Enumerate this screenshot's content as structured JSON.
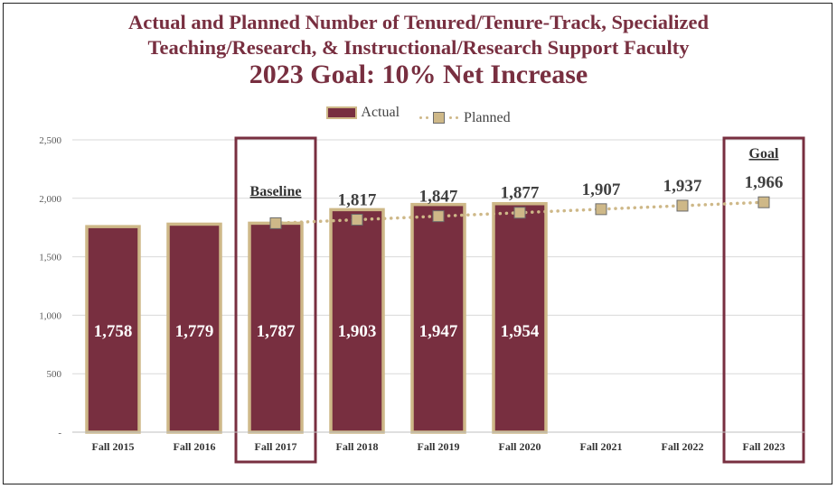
{
  "title_lines": [
    "Actual and Planned Number of Tenured/Tenure-Track, Specialized",
    "Teaching/Research, & Instructional/Research Support Faculty",
    "2023 Goal: 10% Net Increase"
  ],
  "legend": {
    "actual": "Actual",
    "planned": "Planned"
  },
  "colors": {
    "actual_bar": "#782F40",
    "bar_border": "#CEB888",
    "planned": "#CEB888",
    "title": "#782F40",
    "highlight_box": "#782F40"
  },
  "chart_data": {
    "type": "bar",
    "categories": [
      "Fall 2015",
      "Fall 2016",
      "Fall 2017",
      "Fall 2018",
      "Fall 2019",
      "Fall 2020",
      "Fall 2021",
      "Fall 2022",
      "Fall 2023"
    ],
    "series": [
      {
        "name": "Actual",
        "type": "bar",
        "values": [
          1758,
          1779,
          1787,
          1903,
          1947,
          1954,
          null,
          null,
          null
        ]
      },
      {
        "name": "Planned",
        "type": "line",
        "values": [
          null,
          null,
          1787,
          1817,
          1847,
          1877,
          1907,
          1937,
          1966
        ]
      }
    ],
    "actual_labels": [
      "1,758",
      "1,779",
      "1,787",
      "1,903",
      "1,947",
      "1,954"
    ],
    "planned_labels": [
      "",
      "",
      "",
      "1,817",
      "1,847",
      "1,877",
      "1,907",
      "1,937",
      "1,966"
    ],
    "y_ticks": [
      "-",
      "500",
      "1,000",
      "1,500",
      "2,000",
      "2,500"
    ],
    "ylim": [
      0,
      2500
    ],
    "grid": true,
    "legend_position": "top",
    "highlights": [
      {
        "category": "Fall 2017",
        "label": "Baseline"
      },
      {
        "category": "Fall 2023",
        "label": "Goal"
      }
    ]
  }
}
